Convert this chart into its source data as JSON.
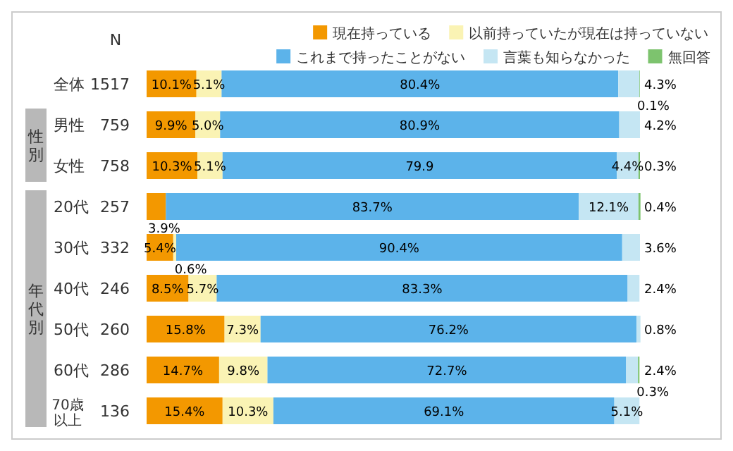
{
  "chart_data": {
    "type": "bar",
    "orientation": "horizontal",
    "stacked": true,
    "xlim": [
      0,
      100
    ],
    "tick_labels": "y",
    "legend": "top right",
    "categories": [
      "全体",
      "男性",
      "女性",
      "20代",
      "30代",
      "40代",
      "50代",
      "60代",
      "70歳以上"
    ],
    "series": [
      {
        "name": "現在持っている",
        "color": "#f39800",
        "values": [
          10.1,
          9.9,
          10.3,
          3.9,
          5.4,
          8.5,
          15.8,
          14.7,
          15.4
        ],
        "value_labels": [
          "10.1%",
          "9.9%",
          "10.3%",
          "3.9%",
          "5.4%",
          "8.5%",
          "15.8%",
          "14.7%",
          "15.4%"
        ]
      },
      {
        "name": "以前持っていたが現在は持っていない",
        "color": "#faf3b4",
        "values": [
          5.1,
          5.0,
          5.1,
          null,
          0.6,
          5.7,
          7.3,
          9.8,
          10.3
        ],
        "value_labels": [
          "5.1%",
          "5.0%",
          "5.1%",
          null,
          "0.6%",
          "5.7%",
          "7.3%",
          "9.8%",
          "10.3%"
        ]
      },
      {
        "name": "これまで持ったことがない",
        "color": "#5cb3ea",
        "values": [
          80.4,
          80.9,
          79.9,
          83.7,
          90.4,
          83.3,
          76.2,
          72.7,
          69.1
        ],
        "value_labels": [
          "80.4%",
          "80.9%",
          "79.9",
          "83.7%",
          "90.4%",
          "83.3%",
          "76.2%",
          "72.7%",
          "69.1%"
        ]
      },
      {
        "name": "言葉も知らなかった",
        "color": "#c5e6f3",
        "values": [
          4.3,
          4.2,
          4.4,
          12.1,
          3.6,
          2.4,
          0.8,
          2.4,
          5.1
        ],
        "value_labels": [
          "4.3%",
          "4.2%",
          "4.4%",
          "12.1%",
          "3.6%",
          "2.4%",
          "0.8%",
          "2.4%",
          "5.1%"
        ]
      },
      {
        "name": "無回答",
        "color": "#7dc36e",
        "values": [
          0.1,
          null,
          0.3,
          0.4,
          null,
          null,
          null,
          0.3,
          null
        ],
        "value_labels": [
          "0.1%",
          null,
          "0.3%",
          "0.4%",
          null,
          null,
          null,
          "0.3%",
          null
        ]
      }
    ],
    "annotations": [
      "N",
      "性別",
      "年代別",
      "1517",
      "759",
      "758",
      "257",
      "332",
      "246",
      "260",
      "286",
      "136"
    ]
  }
}
